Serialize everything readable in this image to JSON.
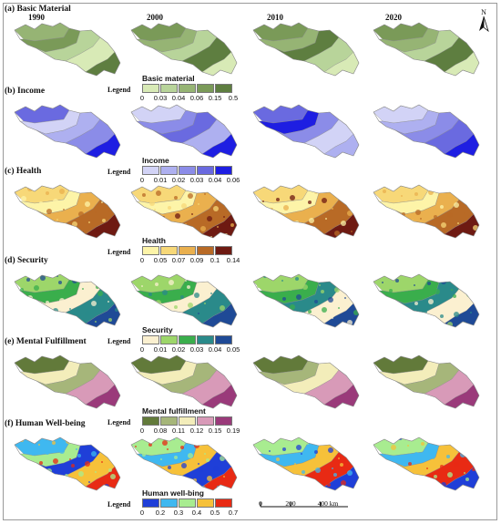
{
  "years": [
    "1990",
    "2000",
    "2010",
    "2020"
  ],
  "north_label": "N",
  "legend_word": "Legend",
  "scale": {
    "ticks": [
      "0",
      "200",
      "400 km"
    ]
  },
  "panels": [
    {
      "id": "basic",
      "title": "(a) Basic Material",
      "legend_title": "Basic material",
      "ticks": [
        "0",
        "0.03",
        "0.04",
        "0.06",
        "0.15",
        "0.5"
      ],
      "colors": [
        "#d8eab6",
        "#b8d49a",
        "#96b474",
        "#7a9a58",
        "#5e7e40"
      ],
      "year_weights": [
        [
          0.15,
          0.2,
          0.25,
          0.25,
          0.15
        ],
        [
          0.12,
          0.18,
          0.25,
          0.28,
          0.17
        ],
        [
          0.1,
          0.15,
          0.25,
          0.3,
          0.2
        ],
        [
          0.12,
          0.18,
          0.25,
          0.27,
          0.18
        ]
      ]
    },
    {
      "id": "income",
      "title": "(b) Income",
      "legend_title": "Income",
      "ticks": [
        "0",
        "0.01",
        "0.02",
        "0.03",
        "0.04",
        "0.06"
      ],
      "colors": [
        "#d2d3f6",
        "#aeb0f0",
        "#8b8ce8",
        "#6a6ae0",
        "#1e1ee2"
      ],
      "year_weights": [
        [
          0.25,
          0.2,
          0.2,
          0.3,
          0.05
        ],
        [
          0.25,
          0.2,
          0.25,
          0.25,
          0.05
        ],
        [
          0.15,
          0.15,
          0.2,
          0.25,
          0.25
        ],
        [
          0.25,
          0.25,
          0.2,
          0.2,
          0.1
        ]
      ]
    },
    {
      "id": "health",
      "title": "(c) Health",
      "legend_title": "Health",
      "ticks": [
        "0",
        "0.05",
        "0.07",
        "0.09",
        "0.1",
        "0.14"
      ],
      "colors": [
        "#fdf4a8",
        "#f7d878",
        "#eab04e",
        "#b86a26",
        "#6e1a12"
      ],
      "year_weights": [
        [
          0.35,
          0.45,
          0.12,
          0.04,
          0.04
        ],
        [
          0.4,
          0.42,
          0.12,
          0.03,
          0.03
        ],
        [
          0.35,
          0.45,
          0.12,
          0.05,
          0.03
        ],
        [
          0.3,
          0.4,
          0.18,
          0.07,
          0.05
        ]
      ]
    },
    {
      "id": "security",
      "title": "(d) Security",
      "legend_title": "Security",
      "ticks": [
        "0",
        "0.01",
        "0.02",
        "0.03",
        "0.04",
        "0.05"
      ],
      "colors": [
        "#fbf0d0",
        "#9dd66a",
        "#3aae4c",
        "#2a8a8a",
        "#1f4a96"
      ],
      "year_weights": [
        [
          0.2,
          0.3,
          0.25,
          0.15,
          0.1
        ],
        [
          0.2,
          0.3,
          0.25,
          0.15,
          0.1
        ],
        [
          0.15,
          0.25,
          0.25,
          0.2,
          0.15
        ],
        [
          0.15,
          0.25,
          0.25,
          0.2,
          0.15
        ]
      ]
    },
    {
      "id": "mental",
      "title": "(e) Mental Fulfillment",
      "legend_title": "Mental fulfillment",
      "ticks": [
        "0",
        "0.08",
        "0.11",
        "0.12",
        "0.15",
        "0.19"
      ],
      "colors": [
        "#627a3a",
        "#a6b67a",
        "#f3edba",
        "#d89ab8",
        "#9a3a7a"
      ],
      "year_weights": [
        [
          0.5,
          0.15,
          0.25,
          0.07,
          0.03
        ],
        [
          0.45,
          0.2,
          0.25,
          0.07,
          0.03
        ],
        [
          0.55,
          0.15,
          0.15,
          0.1,
          0.05
        ],
        [
          0.5,
          0.15,
          0.2,
          0.1,
          0.05
        ]
      ]
    },
    {
      "id": "hwb",
      "title": "(f) Human Well-being",
      "legend_title": "Human well-bing",
      "ticks": [
        "0",
        "0.2",
        "0.3",
        "0.4",
        "0.5",
        "0.7"
      ],
      "colors": [
        "#1f3fd8",
        "#3fb8f0",
        "#a8ec90",
        "#f6c13a",
        "#e82a14"
      ],
      "year_weights": [
        [
          0.15,
          0.3,
          0.3,
          0.15,
          0.1
        ],
        [
          0.15,
          0.28,
          0.3,
          0.17,
          0.1
        ],
        [
          0.1,
          0.25,
          0.3,
          0.2,
          0.15
        ],
        [
          0.12,
          0.25,
          0.28,
          0.2,
          0.15
        ]
      ]
    }
  ]
}
